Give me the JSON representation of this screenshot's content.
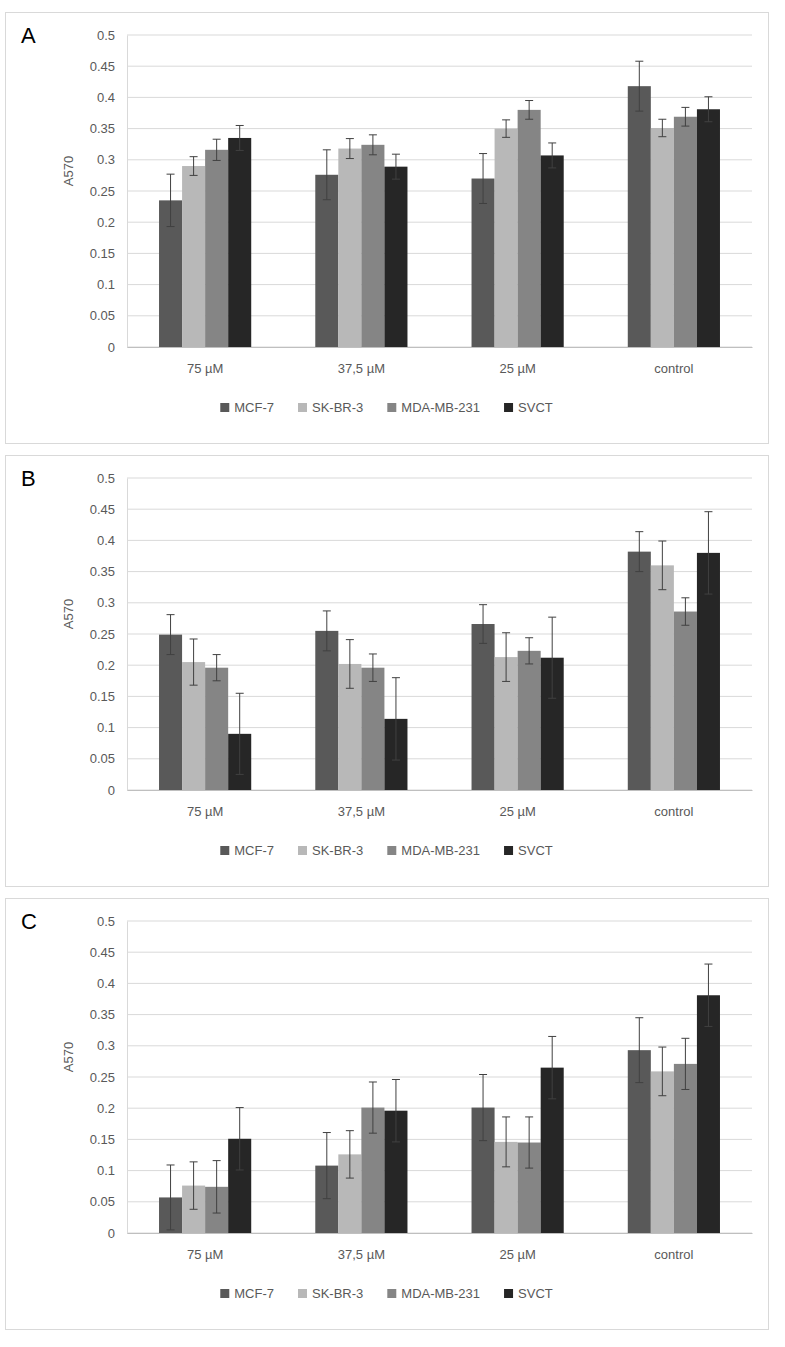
{
  "chart_data": [
    {
      "type": "bar",
      "title": "A",
      "y_label": "A570",
      "categories": [
        "75 µM",
        "37,5 µM",
        "25 µM",
        "control"
      ],
      "series": [
        {
          "name": "MCF-7",
          "color": "#595959",
          "values": [
            0.235,
            0.276,
            0.27,
            0.418
          ],
          "errors": [
            0.042,
            0.04,
            0.04,
            0.04
          ]
        },
        {
          "name": "SK-BR-3",
          "color": "#b8b8b8",
          "values": [
            0.29,
            0.318,
            0.35,
            0.351
          ],
          "errors": [
            0.015,
            0.016,
            0.014,
            0.014
          ]
        },
        {
          "name": "MDA-MB-231",
          "color": "#858585",
          "values": [
            0.316,
            0.324,
            0.38,
            0.369
          ],
          "errors": [
            0.017,
            0.016,
            0.015,
            0.015
          ]
        },
        {
          "name": "SVCT",
          "color": "#262626",
          "values": [
            0.335,
            0.289,
            0.307,
            0.381
          ],
          "errors": [
            0.02,
            0.02,
            0.02,
            0.02
          ]
        }
      ],
      "ylim": [
        0,
        0.5
      ],
      "yticks": [
        0,
        0.05,
        0.1,
        0.15,
        0.2,
        0.25,
        0.3,
        0.35,
        0.4,
        0.45,
        0.5
      ],
      "grid": true,
      "legend": "bottom"
    },
    {
      "type": "bar",
      "title": "B",
      "y_label": "A570",
      "categories": [
        "75 µM",
        "37,5 µM",
        "25 µM",
        "control"
      ],
      "series": [
        {
          "name": "MCF-7",
          "color": "#595959",
          "values": [
            0.249,
            0.255,
            0.266,
            0.382
          ],
          "errors": [
            0.032,
            0.032,
            0.031,
            0.032
          ]
        },
        {
          "name": "SK-BR-3",
          "color": "#b8b8b8",
          "values": [
            0.205,
            0.202,
            0.213,
            0.36
          ],
          "errors": [
            0.037,
            0.039,
            0.039,
            0.039
          ]
        },
        {
          "name": "MDA-MB-231",
          "color": "#858585",
          "values": [
            0.196,
            0.196,
            0.223,
            0.286
          ],
          "errors": [
            0.021,
            0.022,
            0.021,
            0.022
          ]
        },
        {
          "name": "SVCT",
          "color": "#262626",
          "values": [
            0.09,
            0.114,
            0.212,
            0.38
          ],
          "errors": [
            0.065,
            0.066,
            0.065,
            0.066
          ]
        }
      ],
      "ylim": [
        0,
        0.5
      ],
      "yticks": [
        0,
        0.05,
        0.1,
        0.15,
        0.2,
        0.25,
        0.3,
        0.35,
        0.4,
        0.45,
        0.5
      ],
      "grid": true,
      "legend": "bottom"
    },
    {
      "type": "bar",
      "title": "C",
      "y_label": "A570",
      "categories": [
        "75 µM",
        "37,5 µM",
        "25 µM",
        "control"
      ],
      "series": [
        {
          "name": "MCF-7",
          "color": "#595959",
          "values": [
            0.057,
            0.108,
            0.201,
            0.293
          ],
          "errors": [
            0.052,
            0.053,
            0.053,
            0.052
          ]
        },
        {
          "name": "SK-BR-3",
          "color": "#b8b8b8",
          "values": [
            0.076,
            0.126,
            0.146,
            0.259
          ],
          "errors": [
            0.038,
            0.038,
            0.04,
            0.039
          ]
        },
        {
          "name": "MDA-MB-231",
          "color": "#858585",
          "values": [
            0.074,
            0.201,
            0.145,
            0.271
          ],
          "errors": [
            0.042,
            0.041,
            0.041,
            0.041
          ]
        },
        {
          "name": "SVCT",
          "color": "#262626",
          "values": [
            0.151,
            0.196,
            0.265,
            0.381
          ],
          "errors": [
            0.05,
            0.05,
            0.05,
            0.05
          ]
        }
      ],
      "ylim": [
        0,
        0.5
      ],
      "yticks": [
        0,
        0.05,
        0.1,
        0.15,
        0.2,
        0.25,
        0.3,
        0.35,
        0.4,
        0.45,
        0.5
      ],
      "grid": true,
      "legend": "bottom"
    }
  ]
}
